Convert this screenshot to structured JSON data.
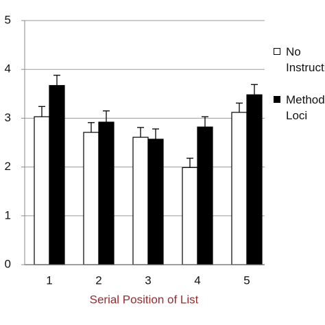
{
  "chart_data": {
    "type": "bar",
    "x_label": "Serial Position of List",
    "categories": [
      "1",
      "2",
      "3",
      "4",
      "5"
    ],
    "series": [
      {
        "name": "No Instruction",
        "color": "#ffffff",
        "values": [
          3.03,
          2.71,
          2.61,
          1.99,
          3.12
        ],
        "errors": [
          0.21,
          0.2,
          0.2,
          0.19,
          0.19
        ]
      },
      {
        "name": "Method of Loci",
        "color": "#000000",
        "values": [
          3.67,
          2.92,
          2.57,
          2.82,
          3.48
        ],
        "errors": [
          0.21,
          0.23,
          0.21,
          0.21,
          0.21
        ]
      }
    ],
    "ylim": [
      0,
      5
    ],
    "yticks": [
      0,
      1,
      2,
      3,
      4,
      5
    ],
    "grid": true
  }
}
